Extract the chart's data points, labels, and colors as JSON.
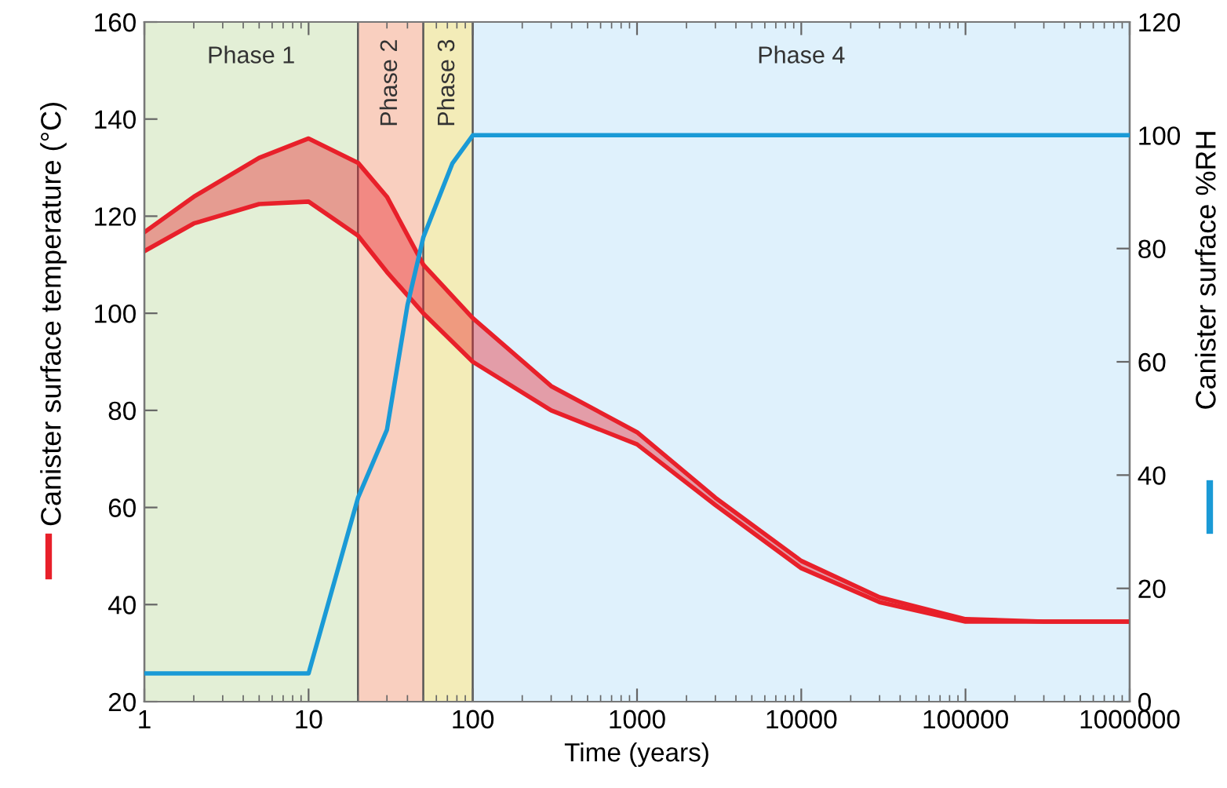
{
  "chart_data": {
    "type": "line",
    "xlabel": "Time (years)",
    "ylabel": "Canister surface temperature (°C)",
    "y2label": "Canister surface %RH",
    "log": "x",
    "grid": false,
    "marker": "none",
    "line_style": "solid",
    "xlim": [
      1,
      1000000
    ],
    "xticks": [
      1,
      10,
      100,
      1000,
      10000,
      100000,
      1000000
    ],
    "ylim": [
      20,
      160
    ],
    "yticks": [
      20,
      40,
      60,
      80,
      100,
      120,
      140,
      160
    ],
    "y2lim": [
      0,
      120
    ],
    "y2ticks": [
      0,
      20,
      40,
      60,
      80,
      100,
      120
    ],
    "bands": [
      {
        "axis": "x",
        "from": 1,
        "to": 20,
        "label": "Phase 1",
        "color": "#e3efd6"
      },
      {
        "axis": "x",
        "from": 20,
        "to": 50,
        "label": "Phase 2",
        "color": "#f9cfbf"
      },
      {
        "axis": "x",
        "from": 50,
        "to": 100,
        "label": "Phase 3",
        "color": "#f3ecb8"
      },
      {
        "axis": "x",
        "from": 100,
        "to": 1000000,
        "label": "Phase 4",
        "color": "#dff1fc"
      }
    ],
    "series": [
      {
        "color": "#e8202a",
        "x": [
          1,
          2,
          5,
          10,
          20,
          30,
          50,
          100,
          300,
          1000,
          3000,
          10000,
          30000,
          100000,
          300000,
          1000000
        ],
        "values": [
          116.7,
          124,
          132,
          136,
          131,
          124,
          110,
          99,
          85,
          75.5,
          62,
          49,
          41.5,
          37,
          36.5,
          36.5
        ],
        "upper": [
          116.7,
          124,
          132,
          136,
          131,
          124,
          110,
          99,
          85,
          75.5,
          62,
          49,
          41.5,
          37,
          36.5,
          36.5
        ],
        "lower": [
          112.8,
          118.5,
          122.5,
          123,
          116,
          108.5,
          100,
          90,
          80,
          73,
          60.5,
          47.5,
          40.5,
          36.5,
          36.5,
          36.5
        ]
      },
      {
        "color": "#e8202a",
        "x": [
          1,
          2,
          5,
          10,
          20,
          30,
          50,
          100,
          300,
          1000,
          3000,
          10000,
          30000,
          100000,
          300000,
          1000000
        ],
        "values": [
          112.8,
          118.5,
          122.5,
          123,
          116,
          108.5,
          100,
          90,
          80,
          73,
          60.5,
          47.5,
          40.5,
          36.5,
          36.5,
          36.5
        ]
      },
      {
        "color": "#1a9ad6",
        "axis": "y2",
        "x": [
          1,
          10,
          20,
          30,
          40,
          50,
          75,
          100,
          1000000
        ],
        "values": [
          5,
          5,
          36,
          48,
          70,
          82,
          95,
          100,
          100
        ]
      }
    ]
  }
}
